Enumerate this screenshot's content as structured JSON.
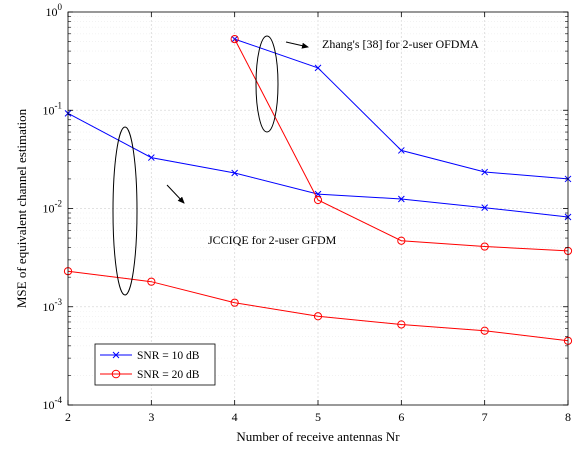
{
  "chart_data": {
    "type": "line",
    "xlabel": "Number of receive antennas Nr",
    "ylabel": "MSE of equivalent channel estimation",
    "xlim": [
      2,
      8
    ],
    "ylim": [
      0.0001,
      1
    ],
    "yscale": "log",
    "grid": true,
    "legend_position": "bottom-left",
    "x_ticks": [
      "2",
      "3",
      "4",
      "5",
      "6",
      "7",
      "8"
    ],
    "y_ticks": [
      {
        "value": 0.0001,
        "base": "10",
        "exp": "-4"
      },
      {
        "value": 0.001,
        "base": "10",
        "exp": "-3"
      },
      {
        "value": 0.01,
        "base": "10",
        "exp": "-2"
      },
      {
        "value": 0.1,
        "base": "10",
        "exp": "-1"
      },
      {
        "value": 1,
        "base": "10",
        "exp": "0"
      }
    ],
    "legend": [
      {
        "label": "SNR = 10 dB",
        "color": "#0000ff",
        "marker": "x"
      },
      {
        "label": "SNR = 20 dB",
        "color": "#ff0000",
        "marker": "o"
      }
    ],
    "series": [
      {
        "group": "JCCIQE for 2-user GFDM",
        "snr": "SNR = 10 dB",
        "color": "#0000ff",
        "marker": "x",
        "x": [
          2,
          3,
          4,
          5,
          6,
          7,
          8
        ],
        "y": [
          0.093,
          0.033,
          0.023,
          0.014,
          0.0125,
          0.0102,
          0.0082
        ]
      },
      {
        "group": "JCCIQE for 2-user GFDM",
        "snr": "SNR = 20 dB",
        "color": "#ff0000",
        "marker": "o",
        "x": [
          2,
          3,
          4,
          5,
          6,
          7,
          8
        ],
        "y": [
          0.0023,
          0.0018,
          0.0011,
          0.0008,
          0.00066,
          0.00057,
          0.00045
        ]
      },
      {
        "group": "Zhang's [38] for 2-user OFDMA",
        "snr": "SNR = 10 dB",
        "color": "#0000ff",
        "marker": "x",
        "x": [
          4,
          5,
          6,
          7,
          8
        ],
        "y": [
          0.53,
          0.27,
          0.039,
          0.0235,
          0.02
        ]
      },
      {
        "group": "Zhang's [38] for 2-user OFDMA",
        "snr": "SNR = 20 dB",
        "color": "#ff0000",
        "marker": "o",
        "x": [
          4,
          5,
          6,
          7,
          8
        ],
        "y": [
          0.53,
          0.0122,
          0.0047,
          0.0041,
          0.0037
        ]
      }
    ],
    "annotations": [
      {
        "text": "Zhang's [38] for 2-user OFDMA"
      },
      {
        "text": "JCCIQE for 2-user GFDM"
      }
    ]
  }
}
